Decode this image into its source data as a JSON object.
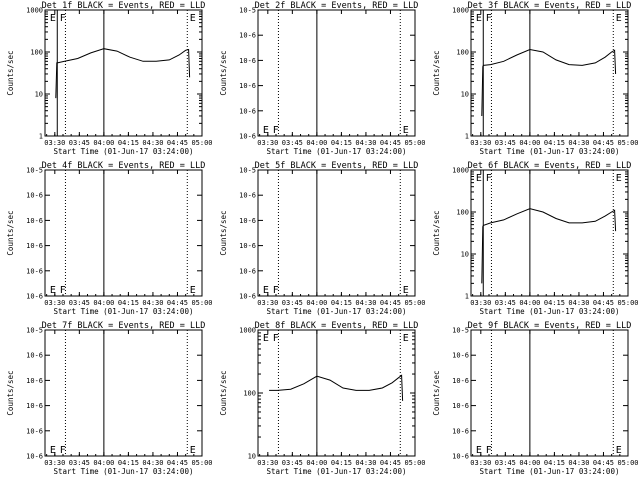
{
  "chart_data": [
    {
      "type": "line",
      "title": "Det 1f BLACK = Events, RED = LLD",
      "xlabel": "Start Time (01-Jun-17 03:24:00)",
      "ylabel": "Counts/sec",
      "x_tick_labels": [
        "03:30",
        "03:45",
        "04:00",
        "04:15",
        "04:30",
        "04:45",
        "05:00"
      ],
      "x_range_minutes": [
        0,
        96
      ],
      "y_scale": "log",
      "y_range": [
        1,
        1000
      ],
      "y_tick_labels": [
        "1",
        "10",
        "100",
        "1000"
      ],
      "vlines": {
        "solid": [
          7.5,
          36
        ],
        "dotted": [
          12.5,
          87
        ]
      },
      "markers": [
        {
          "label": "E",
          "x": 3
        },
        {
          "label": "F",
          "x": 9
        },
        {
          "label": "E",
          "x": 88.5
        }
      ],
      "series": [
        {
          "x": [
            6.6,
            7.2,
            7.6,
            12,
            20,
            28,
            36,
            44,
            52,
            60,
            68,
            76,
            82,
            86,
            87.8,
            88.4
          ],
          "y": [
            8,
            55,
            55,
            60,
            70,
            95,
            120,
            105,
            75,
            60,
            60,
            65,
            85,
            110,
            115,
            25
          ]
        }
      ]
    },
    {
      "type": "line",
      "title": "Det 2f BLACK = Events, RED = LLD",
      "xlabel": "Start Time (01-Jun-17 03:24:00)",
      "ylabel": "Counts/sec",
      "x_tick_labels": [
        "03:30",
        "03:45",
        "04:00",
        "04:15",
        "04:30",
        "04:45",
        "05:00"
      ],
      "x_range_minutes": [
        0,
        96
      ],
      "y_scale": "log",
      "y_range": [
        1e-06,
        1e-05
      ],
      "y_tick_labels": [
        "10-6",
        "10-6",
        "10-6",
        "10-6",
        "10-6",
        "10-5"
      ],
      "vlines": {
        "solid": [
          36
        ],
        "dotted": [
          12.5,
          87
        ]
      },
      "markers": [
        {
          "label": "E",
          "x": 3
        },
        {
          "label": "F",
          "x": 9
        },
        {
          "label": "E",
          "x": 88.5
        }
      ],
      "series": []
    },
    {
      "type": "line",
      "title": "Det 3f BLACK = Events, RED = LLD",
      "xlabel": "Start Time (01-Jun-17 03:24:00)",
      "ylabel": "Counts/sec",
      "x_tick_labels": [
        "03:30",
        "03:45",
        "04:00",
        "04:15",
        "04:30",
        "04:45",
        "05:00"
      ],
      "x_range_minutes": [
        0,
        96
      ],
      "y_scale": "log",
      "y_range": [
        1,
        1000
      ],
      "y_tick_labels": [
        "1",
        "10",
        "100",
        "1000"
      ],
      "vlines": {
        "solid": [
          7.5,
          36
        ],
        "dotted": [
          12.5,
          87
        ]
      },
      "markers": [
        {
          "label": "E",
          "x": 3
        },
        {
          "label": "F",
          "x": 9
        },
        {
          "label": "E",
          "x": 88.5
        }
      ],
      "series": [
        {
          "x": [
            6.6,
            7.2,
            7.6,
            12,
            20,
            28,
            36,
            44,
            52,
            60,
            68,
            76,
            82,
            86,
            87.8,
            88.4
          ],
          "y": [
            3,
            45,
            48,
            50,
            60,
            85,
            115,
            100,
            65,
            50,
            48,
            55,
            75,
            100,
            110,
            30
          ]
        }
      ]
    },
    {
      "type": "line",
      "title": "Det 4f BLACK = Events, RED = LLD",
      "xlabel": "Start Time (01-Jun-17 03:24:00)",
      "ylabel": "Counts/sec",
      "x_tick_labels": [
        "03:30",
        "03:45",
        "04:00",
        "04:15",
        "04:30",
        "04:45",
        "05:00"
      ],
      "x_range_minutes": [
        0,
        96
      ],
      "y_scale": "log",
      "y_range": [
        1e-06,
        1e-05
      ],
      "y_tick_labels": [
        "10-6",
        "10-6",
        "10-6",
        "10-6",
        "10-6",
        "10-5"
      ],
      "vlines": {
        "solid": [
          36
        ],
        "dotted": [
          12.5,
          87
        ]
      },
      "markers": [
        {
          "label": "E",
          "x": 3
        },
        {
          "label": "F",
          "x": 9
        },
        {
          "label": "E",
          "x": 88.5
        }
      ],
      "series": []
    },
    {
      "type": "line",
      "title": "Det 5f BLACK = Events, RED = LLD",
      "xlabel": "Start Time (01-Jun-17 03:24:00)",
      "ylabel": "Counts/sec",
      "x_tick_labels": [
        "03:30",
        "03:45",
        "04:00",
        "04:15",
        "04:30",
        "04:45",
        "05:00"
      ],
      "x_range_minutes": [
        0,
        96
      ],
      "y_scale": "log",
      "y_range": [
        1e-06,
        1e-05
      ],
      "y_tick_labels": [
        "10-6",
        "10-6",
        "10-6",
        "10-6",
        "10-6",
        "10-5"
      ],
      "vlines": {
        "solid": [
          36
        ],
        "dotted": [
          12.5,
          87
        ]
      },
      "markers": [
        {
          "label": "E",
          "x": 3
        },
        {
          "label": "F",
          "x": 9
        },
        {
          "label": "E",
          "x": 88.5
        }
      ],
      "series": []
    },
    {
      "type": "line",
      "title": "Det 6f BLACK = Events, RED = LLD",
      "xlabel": "Start Time (01-Jun-17 03:24:00)",
      "ylabel": "Counts/sec",
      "x_tick_labels": [
        "03:30",
        "03:45",
        "04:00",
        "04:15",
        "04:30",
        "04:45",
        "05:00"
      ],
      "x_range_minutes": [
        0,
        96
      ],
      "y_scale": "log",
      "y_range": [
        1,
        1000
      ],
      "y_tick_labels": [
        "1",
        "10",
        "100",
        "1000"
      ],
      "vlines": {
        "solid": [
          7.5,
          36
        ],
        "dotted": [
          12.5,
          87
        ]
      },
      "markers": [
        {
          "label": "E",
          "x": 3
        },
        {
          "label": "F",
          "x": 9
        },
        {
          "label": "E",
          "x": 88.5
        }
      ],
      "series": [
        {
          "x": [
            6.6,
            7.2,
            7.6,
            12,
            20,
            28,
            36,
            44,
            52,
            60,
            68,
            76,
            82,
            86,
            87.8,
            88.4
          ],
          "y": [
            2,
            45,
            48,
            55,
            65,
            90,
            120,
            100,
            70,
            55,
            55,
            60,
            80,
            100,
            110,
            35
          ]
        }
      ]
    },
    {
      "type": "line",
      "title": "Det 7f BLACK = Events, RED = LLD",
      "xlabel": "Start Time (01-Jun-17 03:24:00)",
      "ylabel": "Counts/sec",
      "x_tick_labels": [
        "03:30",
        "03:45",
        "04:00",
        "04:15",
        "04:30",
        "04:45",
        "05:00"
      ],
      "x_range_minutes": [
        0,
        96
      ],
      "y_scale": "log",
      "y_range": [
        1e-06,
        1e-05
      ],
      "y_tick_labels": [
        "10-6",
        "10-6",
        "10-6",
        "10-6",
        "10-6",
        "10-5"
      ],
      "vlines": {
        "solid": [
          36
        ],
        "dotted": [
          12.5,
          87
        ]
      },
      "markers": [
        {
          "label": "E",
          "x": 3
        },
        {
          "label": "F",
          "x": 9
        },
        {
          "label": "E",
          "x": 88.5
        }
      ],
      "series": []
    },
    {
      "type": "line",
      "title": "Det 8f BLACK = Events, RED = LLD",
      "xlabel": "Start Time (01-Jun-17 03:24:00)",
      "ylabel": "Counts/sec",
      "x_tick_labels": [
        "03:30",
        "03:45",
        "04:00",
        "04:15",
        "04:30",
        "04:45",
        "05:00"
      ],
      "x_range_minutes": [
        0,
        96
      ],
      "y_scale": "log",
      "y_range": [
        10,
        1000
      ],
      "y_tick_labels": [
        "10",
        "100",
        "1000"
      ],
      "vlines": {
        "solid": [
          36
        ],
        "dotted": [
          12.5,
          87
        ]
      },
      "markers": [
        {
          "label": "E",
          "x": 3
        },
        {
          "label": "F",
          "x": 9
        },
        {
          "label": "E",
          "x": 88.5
        }
      ],
      "series": [
        {
          "x": [
            6.8,
            12,
            20,
            28,
            36,
            44,
            52,
            60,
            68,
            76,
            82,
            86,
            87.8,
            88.4
          ],
          "y": [
            110,
            110,
            115,
            140,
            185,
            160,
            120,
            110,
            110,
            120,
            145,
            175,
            190,
            75
          ]
        }
      ]
    },
    {
      "type": "line",
      "title": "Det 9f BLACK = Events, RED = LLD",
      "xlabel": "Start Time (01-Jun-17 03:24:00)",
      "ylabel": "Counts/sec",
      "x_tick_labels": [
        "03:30",
        "03:45",
        "04:00",
        "04:15",
        "04:30",
        "04:45",
        "05:00"
      ],
      "x_range_minutes": [
        0,
        96
      ],
      "y_scale": "log",
      "y_range": [
        1e-06,
        1e-05
      ],
      "y_tick_labels": [
        "10-6",
        "10-6",
        "10-6",
        "10-6",
        "10-6",
        "10-5"
      ],
      "vlines": {
        "solid": [
          36
        ],
        "dotted": [
          12.5,
          87
        ]
      },
      "markers": [
        {
          "label": "E",
          "x": 3
        },
        {
          "label": "F",
          "x": 9
        },
        {
          "label": "E",
          "x": 88.5
        }
      ],
      "series": []
    }
  ]
}
